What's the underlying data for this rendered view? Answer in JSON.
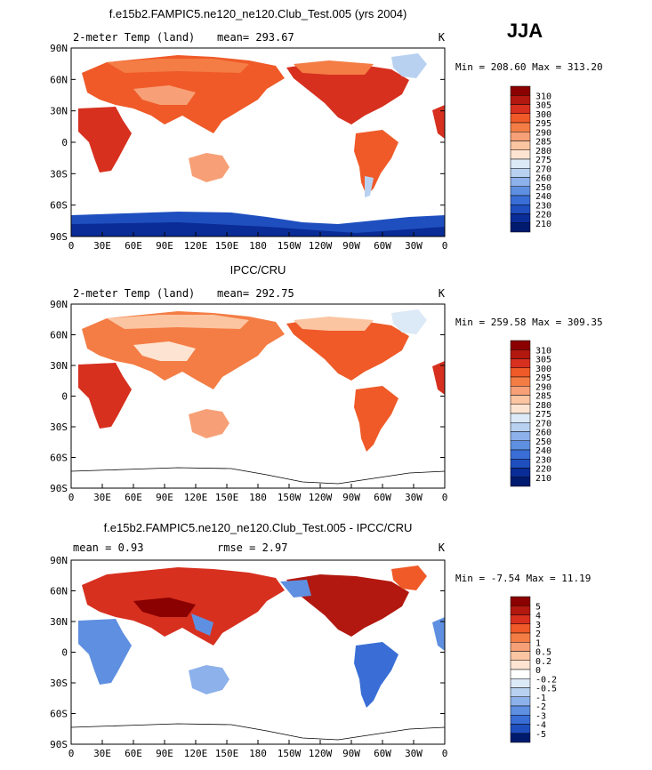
{
  "season": "JJA",
  "panels": [
    {
      "title": "f.e15b2.FAMPIC5.ne120_ne120.Club_Test.005 (yrs 2004)",
      "variable": "2-meter Temp (land)",
      "unit": "K",
      "stat1": "mean=  293.67",
      "stat2": "",
      "minmax": "Min = 208.60  Max = 313.20",
      "colorbar": [
        "310",
        "305",
        "300",
        "295",
        "290",
        "285",
        "280",
        "275",
        "270",
        "260",
        "250",
        "240",
        "230",
        "220",
        "210"
      ]
    },
    {
      "title": "IPCC/CRU",
      "variable": "2-meter Temp (land)",
      "unit": "K",
      "stat1": "mean=  292.75",
      "stat2": "",
      "minmax": "Min = 259.58  Max = 309.35",
      "colorbar": [
        "310",
        "305",
        "300",
        "295",
        "290",
        "285",
        "280",
        "275",
        "270",
        "260",
        "250",
        "240",
        "230",
        "220",
        "210"
      ]
    },
    {
      "title": "f.e15b2.FAMPIC5.ne120_ne120.Club_Test.005 - IPCC/CRU",
      "variable": "",
      "unit": "K",
      "stat1": "mean =    0.93",
      "stat2": "rmse =    2.97",
      "minmax": "Min =  -7.54  Max =   11.19",
      "colorbar": [
        "5",
        "4",
        "3",
        "2",
        "1",
        "0.5",
        "0.2",
        "0",
        "-0.2",
        "-0.5",
        "-1",
        "-2",
        "-3",
        "-4",
        "-5"
      ]
    }
  ],
  "x_ticks": [
    "0",
    "30E",
    "60E",
    "90E",
    "120E",
    "150E",
    "180",
    "150W",
    "120W",
    "90W",
    "60W",
    "30W",
    "0"
  ],
  "y_ticks": [
    "90N",
    "60N",
    "30N",
    "0",
    "30S",
    "60S",
    "90S"
  ],
  "colors": {
    "abs_scale": [
      "#8b0000",
      "#b2180f",
      "#d7301f",
      "#ef5a28",
      "#f47d45",
      "#f7a077",
      "#fbc5a2",
      "#fde4d2",
      "#dce9f7",
      "#b9d1f1",
      "#8db1ea",
      "#5f8fe0",
      "#3a6ed6",
      "#1f4fbf",
      "#0a2c96",
      "#001a6e"
    ],
    "diff_scale": [
      "#8b0000",
      "#b2180f",
      "#d7301f",
      "#ef5a28",
      "#f47d45",
      "#f7a077",
      "#fbc5a2",
      "#fde4d2",
      "#ffffff",
      "#dce9f7",
      "#b9d1f1",
      "#8db1ea",
      "#5f8fe0",
      "#3a6ed6",
      "#1f4fbf",
      "#001a6e"
    ]
  }
}
